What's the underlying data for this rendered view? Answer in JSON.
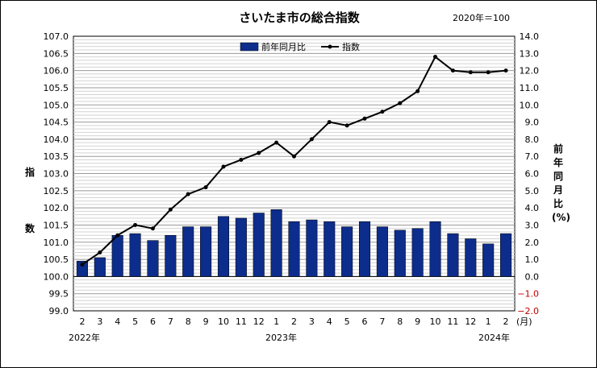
{
  "chart_data": {
    "type": "bar+line",
    "title": "さいたま市の総合指数",
    "base_note": "2020年＝100",
    "categories": [
      "2",
      "3",
      "4",
      "5",
      "6",
      "7",
      "8",
      "9",
      "10",
      "11",
      "12",
      "1",
      "2",
      "3",
      "4",
      "5",
      "6",
      "7",
      "8",
      "9",
      "10",
      "11",
      "12",
      "1",
      "2"
    ],
    "years": [
      "2022年",
      "2023年",
      "2024年"
    ],
    "month_unit": "(月)",
    "ylabel_left": "指数",
    "ylabel_right": "前年同月比(%)",
    "y_left": {
      "min": 99.0,
      "max": 107.0,
      "ticks": [
        "99.0",
        "99.5",
        "100.0",
        "100.5",
        "101.0",
        "101.5",
        "102.0",
        "102.5",
        "103.0",
        "103.5",
        "104.0",
        "104.5",
        "105.0",
        "105.5",
        "106.0",
        "106.5",
        "107.0"
      ]
    },
    "y_right": {
      "min": -2.0,
      "max": 14.0,
      "ticks": [
        "−2.0",
        "−1.0",
        "0.0",
        "1.0",
        "2.0",
        "3.0",
        "4.0",
        "5.0",
        "6.0",
        "7.0",
        "8.0",
        "9.0",
        "10.0",
        "11.0",
        "12.0",
        "13.0",
        "14.0"
      ]
    },
    "legend_position": "top-center",
    "grid": true,
    "series": [
      {
        "name": "前年同月比",
        "type": "bar",
        "axis": "right",
        "color": "#0d2d8c",
        "values": [
          0.9,
          1.1,
          2.4,
          2.5,
          2.1,
          2.4,
          2.9,
          2.9,
          3.5,
          3.4,
          3.7,
          3.9,
          3.2,
          3.3,
          3.2,
          2.9,
          3.2,
          2.9,
          2.7,
          2.8,
          3.2,
          2.5,
          2.2,
          1.9,
          2.5
        ]
      },
      {
        "name": "指数",
        "type": "line",
        "axis": "left",
        "color": "#000000",
        "values": [
          100.35,
          100.7,
          101.2,
          101.5,
          101.4,
          101.95,
          102.4,
          102.6,
          103.2,
          103.4,
          103.6,
          103.9,
          103.5,
          104.0,
          104.5,
          104.4,
          104.6,
          104.8,
          105.05,
          105.4,
          106.4,
          106.0,
          105.95,
          105.95,
          106.0
        ]
      }
    ]
  }
}
